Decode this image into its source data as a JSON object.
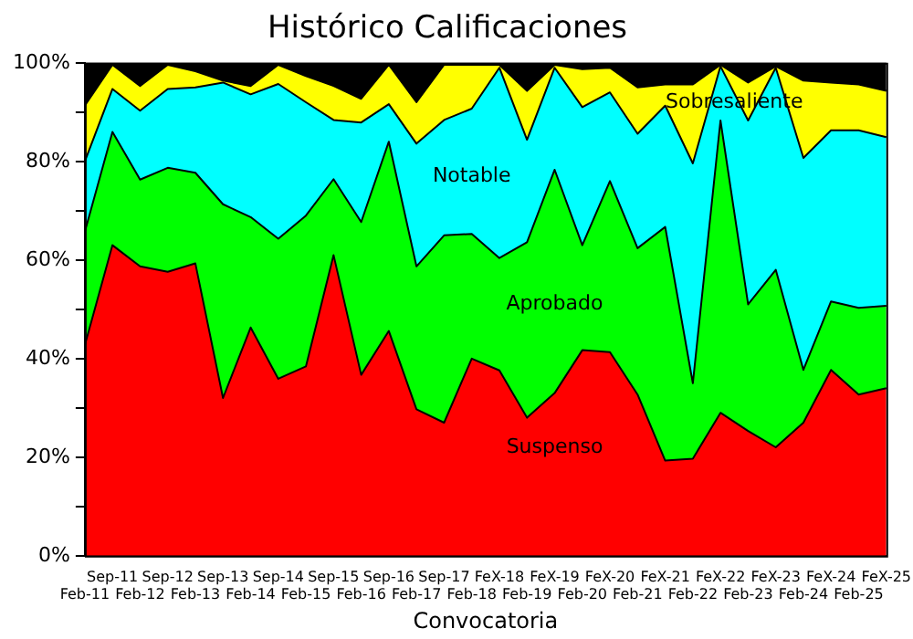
{
  "chart_data": {
    "type": "area",
    "title": "Histórico Calificaciones",
    "xlabel": "Convocatoria",
    "stacked": true,
    "grid": false,
    "legend": false,
    "categories": [
      "Feb-11",
      "Sep-11",
      "Feb-12",
      "Sep-12",
      "Feb-13",
      "Sep-13",
      "Feb-14",
      "Sep-14",
      "Feb-15",
      "Sep-15",
      "Feb-16",
      "Sep-16",
      "Feb-17",
      "Sep-17",
      "Feb-18",
      "FeX-18",
      "Feb-19",
      "FeX-19",
      "Feb-20",
      "FeX-20",
      "Feb-21",
      "FeX-21",
      "Feb-22",
      "FeX-22",
      "Feb-23",
      "FeX-23",
      "Feb-24",
      "FeX-24",
      "Feb-25",
      "FeX-25"
    ],
    "ylim": [
      0,
      100
    ],
    "yticks": [
      {
        "value": 0,
        "label": "0%"
      },
      {
        "value": 10,
        "label": null
      },
      {
        "value": 20,
        "label": "20%"
      },
      {
        "value": 30,
        "label": null
      },
      {
        "value": 40,
        "label": "40%"
      },
      {
        "value": 50,
        "label": null
      },
      {
        "value": 60,
        "label": "60%"
      },
      {
        "value": 70,
        "label": null
      },
      {
        "value": 80,
        "label": "80%"
      },
      {
        "value": 90,
        "label": null
      },
      {
        "value": 100,
        "label": "100%"
      }
    ],
    "series": [
      {
        "name": "Suspenso",
        "color": "#ff0000",
        "values": [
          42.7,
          63,
          58.7,
          57.6,
          59.3,
          32,
          46.3,
          35.9,
          38.4,
          61,
          36.7,
          45.6,
          29.7,
          27,
          40,
          37.6,
          28,
          33,
          41.7,
          41.3,
          32.7,
          19.3,
          19.7,
          29,
          25.3,
          22,
          27,
          37.7,
          32.7,
          34
        ]
      },
      {
        "name": "Aprobado",
        "color": "#00ff00",
        "values": [
          23,
          23,
          17.6,
          21.1,
          18.4,
          39.3,
          22.4,
          28.4,
          30.6,
          15.4,
          31,
          38.4,
          29,
          38,
          25.3,
          22.8,
          35.6,
          45.3,
          21.3,
          34.7,
          29.7,
          47.4,
          15.3,
          59.3,
          25.7,
          36,
          10.7,
          13.9,
          17.6,
          16.7
        ]
      },
      {
        "name": "Notable",
        "color": "#00ffff",
        "values": [
          14.3,
          8.7,
          14,
          16,
          17.3,
          24.7,
          24.9,
          31.4,
          23,
          12,
          20.2,
          7.6,
          24.9,
          23.4,
          25.4,
          38.6,
          20.8,
          20.7,
          28,
          18,
          23.2,
          24.6,
          44.6,
          11,
          37.3,
          41,
          43,
          34.7,
          36,
          34.2
        ]
      },
      {
        "name": "Sobresaliente",
        "color": "#ffff00",
        "values": [
          11.3,
          4.9,
          5,
          4.9,
          3.3,
          0.4,
          1.7,
          3.9,
          5.3,
          6.9,
          4.8,
          8,
          8.4,
          11.2,
          8.9,
          0.6,
          9.9,
          0.6,
          7.7,
          5,
          9.4,
          4.3,
          16,
          0.3,
          7.7,
          0.3,
          15.7,
          9.7,
          9.3,
          9.4
        ]
      },
      {
        "color": "#000000",
        "values": [
          8.7,
          0.4,
          4.7,
          0.4,
          1.7,
          3.6,
          4.7,
          0.4,
          2.7,
          4.7,
          7.3,
          0.4,
          8,
          0.4,
          0.4,
          0.4,
          5.7,
          0.4,
          1.3,
          1,
          5,
          4.4,
          4.4,
          0.4,
          4,
          0.7,
          3.6,
          4,
          4.4,
          5.7
        ]
      }
    ]
  }
}
